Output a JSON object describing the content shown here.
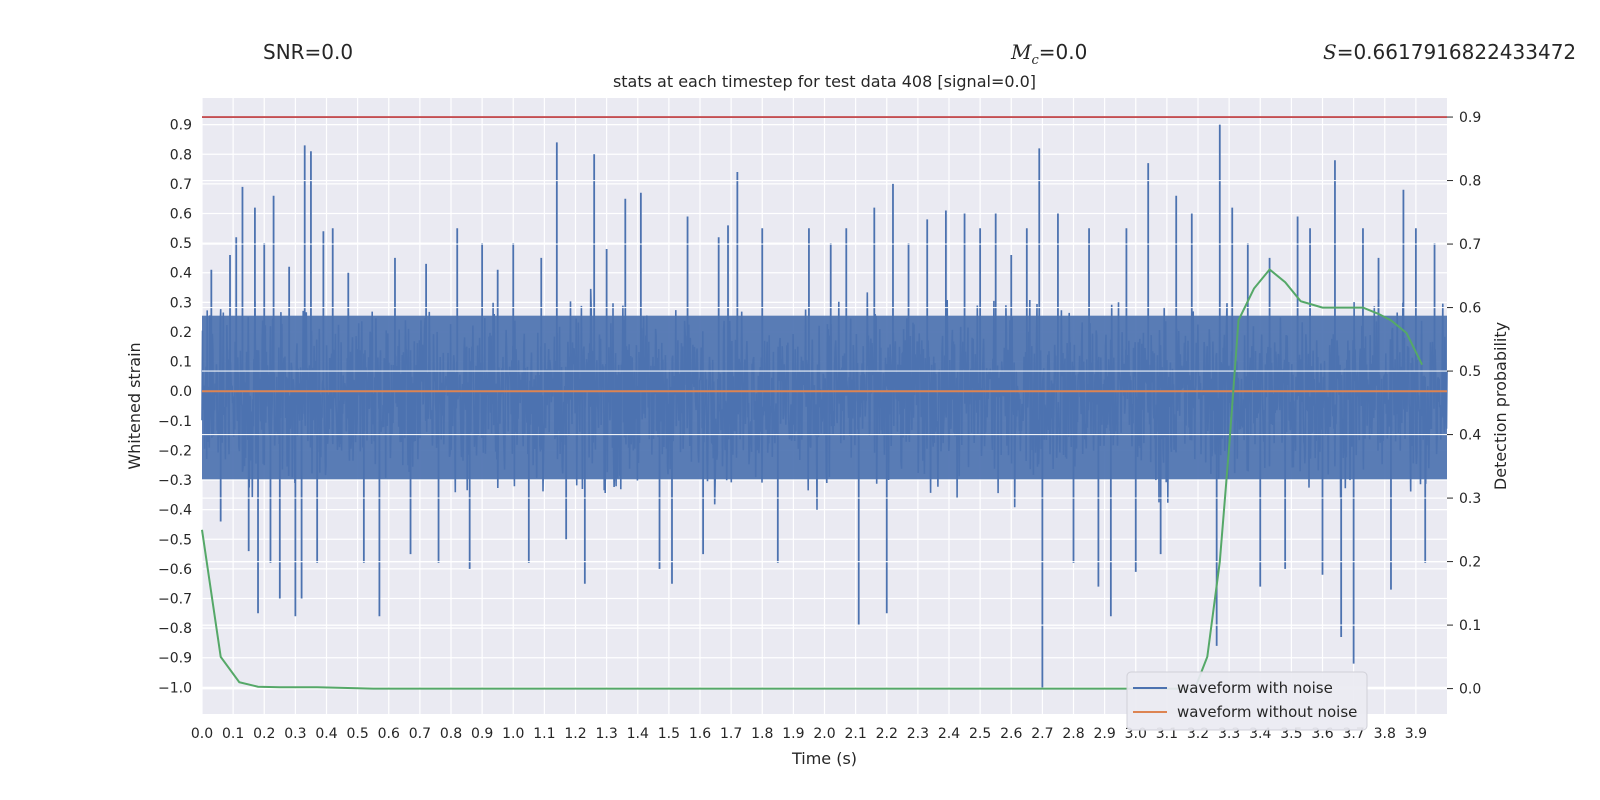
{
  "header": {
    "snr_text": "SNR=0.0",
    "mc_symbol": "M",
    "mc_subscript": "c",
    "mc_value": "=0.0",
    "s_symbol": "S",
    "s_value": "=0.6617916822433472"
  },
  "chart_data": {
    "type": "line",
    "title": "stats at each timestep for test data 408 [signal=0.0]",
    "xlabel": "Time (s)",
    "ylabel_left": "Whitened strain",
    "ylabel_right": "Detection probability",
    "xlim": [
      0.0,
      4.0
    ],
    "ylim_left": [
      -1.09,
      0.99
    ],
    "ylim_right": [
      -0.04,
      0.93
    ],
    "x_ticks": [
      "0.0",
      "0.1",
      "0.2",
      "0.3",
      "0.4",
      "0.5",
      "0.6",
      "0.7",
      "0.8",
      "0.9",
      "1.0",
      "1.1",
      "1.2",
      "1.3",
      "1.4",
      "1.5",
      "1.6",
      "1.7",
      "1.8",
      "1.9",
      "2.0",
      "2.1",
      "2.2",
      "2.3",
      "2.4",
      "2.5",
      "2.6",
      "2.7",
      "2.8",
      "2.9",
      "3.0",
      "3.1",
      "3.2",
      "3.3",
      "3.4",
      "3.5",
      "3.6",
      "3.7",
      "3.8",
      "3.9"
    ],
    "y_ticks_left": [
      "0.9",
      "0.8",
      "0.7",
      "0.6",
      "0.5",
      "0.4",
      "0.3",
      "0.2",
      "0.1",
      "0.0",
      "−0.1",
      "−0.2",
      "−0.3",
      "−0.4",
      "−0.5",
      "−0.6",
      "−0.7",
      "−0.8",
      "−0.9",
      "−1.0"
    ],
    "y_ticks_right": [
      "0.9",
      "0.8",
      "0.7",
      "0.6",
      "0.5",
      "0.4",
      "0.3",
      "0.2",
      "0.1",
      "0.0"
    ],
    "grid": true,
    "legend": {
      "position": "lower-right",
      "entries": [
        "waveform with noise",
        "waveform without noise"
      ]
    },
    "colors": {
      "noise": "#4c72b0",
      "clean": "#dd8452",
      "probability": "#55a868",
      "threshold": "#c44e52",
      "background": "#eaeaf2"
    },
    "threshold": {
      "value": 0.9
    },
    "series": [
      {
        "name": "waveform with noise",
        "axis": "left",
        "noise_envelope": {
          "typical_max": 0.3,
          "typical_min": -0.35
        },
        "spikes": [
          [
            0.03,
            0.41
          ],
          [
            0.06,
            -0.44
          ],
          [
            0.09,
            0.46
          ],
          [
            0.11,
            0.52
          ],
          [
            0.13,
            0.69
          ],
          [
            0.15,
            -0.54
          ],
          [
            0.17,
            0.62
          ],
          [
            0.18,
            -0.75
          ],
          [
            0.2,
            0.5
          ],
          [
            0.22,
            -0.58
          ],
          [
            0.23,
            0.66
          ],
          [
            0.25,
            -0.7
          ],
          [
            0.28,
            0.42
          ],
          [
            0.3,
            -0.76
          ],
          [
            0.32,
            -0.7
          ],
          [
            0.33,
            0.83
          ],
          [
            0.35,
            0.81
          ],
          [
            0.37,
            -0.58
          ],
          [
            0.39,
            0.54
          ],
          [
            0.42,
            0.55
          ],
          [
            0.47,
            0.4
          ],
          [
            0.52,
            -0.58
          ],
          [
            0.57,
            -0.76
          ],
          [
            0.62,
            0.45
          ],
          [
            0.67,
            -0.55
          ],
          [
            0.72,
            0.43
          ],
          [
            0.76,
            -0.58
          ],
          [
            0.82,
            0.55
          ],
          [
            0.86,
            -0.6
          ],
          [
            0.9,
            0.5
          ],
          [
            0.95,
            0.41
          ],
          [
            1.0,
            0.5
          ],
          [
            1.05,
            -0.58
          ],
          [
            1.09,
            0.45
          ],
          [
            1.14,
            0.84
          ],
          [
            1.17,
            -0.5
          ],
          [
            1.23,
            -0.65
          ],
          [
            1.26,
            0.8
          ],
          [
            1.3,
            0.48
          ],
          [
            1.36,
            0.65
          ],
          [
            1.41,
            0.67
          ],
          [
            1.47,
            -0.6
          ],
          [
            1.51,
            -0.65
          ],
          [
            1.56,
            0.59
          ],
          [
            1.61,
            -0.55
          ],
          [
            1.66,
            0.52
          ],
          [
            1.69,
            0.56
          ],
          [
            1.72,
            0.74
          ],
          [
            1.8,
            0.55
          ],
          [
            1.85,
            -0.58
          ],
          [
            1.95,
            0.55
          ],
          [
            2.02,
            0.5
          ],
          [
            2.07,
            0.55
          ],
          [
            2.11,
            -0.79
          ],
          [
            2.16,
            0.62
          ],
          [
            2.2,
            -0.75
          ],
          [
            2.22,
            0.7
          ],
          [
            2.27,
            0.5
          ],
          [
            2.33,
            0.58
          ],
          [
            2.39,
            0.61
          ],
          [
            2.45,
            0.6
          ],
          [
            2.5,
            0.55
          ],
          [
            2.55,
            0.6
          ],
          [
            2.6,
            0.46
          ],
          [
            2.65,
            0.55
          ],
          [
            2.69,
            0.82
          ],
          [
            2.7,
            -1.0
          ],
          [
            2.75,
            0.6
          ],
          [
            2.8,
            -0.58
          ],
          [
            2.85,
            0.55
          ],
          [
            2.88,
            -0.66
          ],
          [
            2.92,
            -0.76
          ],
          [
            2.97,
            0.55
          ],
          [
            3.0,
            -0.61
          ],
          [
            3.04,
            0.77
          ],
          [
            3.08,
            -0.55
          ],
          [
            3.13,
            0.66
          ],
          [
            3.18,
            0.6
          ],
          [
            3.26,
            -0.86
          ],
          [
            3.27,
            0.9
          ],
          [
            3.31,
            0.62
          ],
          [
            3.36,
            0.5
          ],
          [
            3.4,
            -0.66
          ],
          [
            3.43,
            0.45
          ],
          [
            3.48,
            -0.6
          ],
          [
            3.52,
            0.59
          ],
          [
            3.56,
            0.55
          ],
          [
            3.6,
            -0.62
          ],
          [
            3.64,
            0.78
          ],
          [
            3.66,
            -0.83
          ],
          [
            3.7,
            -0.92
          ],
          [
            3.73,
            0.55
          ],
          [
            3.78,
            0.45
          ],
          [
            3.82,
            -0.67
          ],
          [
            3.86,
            0.68
          ],
          [
            3.9,
            0.55
          ],
          [
            3.93,
            -0.58
          ],
          [
            3.96,
            0.5
          ]
        ]
      },
      {
        "name": "waveform without noise",
        "axis": "left",
        "x": [
          0.0,
          4.0
        ],
        "y": [
          0.0,
          0.0
        ]
      },
      {
        "axis": "right",
        "x": [
          0.0,
          0.06,
          0.12,
          0.18,
          0.25,
          0.37,
          0.55,
          1.0,
          2.0,
          3.0,
          3.19,
          3.23,
          3.27,
          3.3,
          3.33,
          3.38,
          3.43,
          3.48,
          3.53,
          3.6,
          3.67,
          3.73,
          3.78,
          3.82,
          3.87,
          3.92
        ],
        "y": [
          0.25,
          0.05,
          0.01,
          0.003,
          0.002,
          0.002,
          0.0,
          0.0,
          0.0,
          0.0,
          0.0,
          0.05,
          0.2,
          0.38,
          0.58,
          0.63,
          0.66,
          0.64,
          0.61,
          0.6,
          0.6,
          0.6,
          0.59,
          0.58,
          0.56,
          0.51
        ]
      }
    ]
  }
}
